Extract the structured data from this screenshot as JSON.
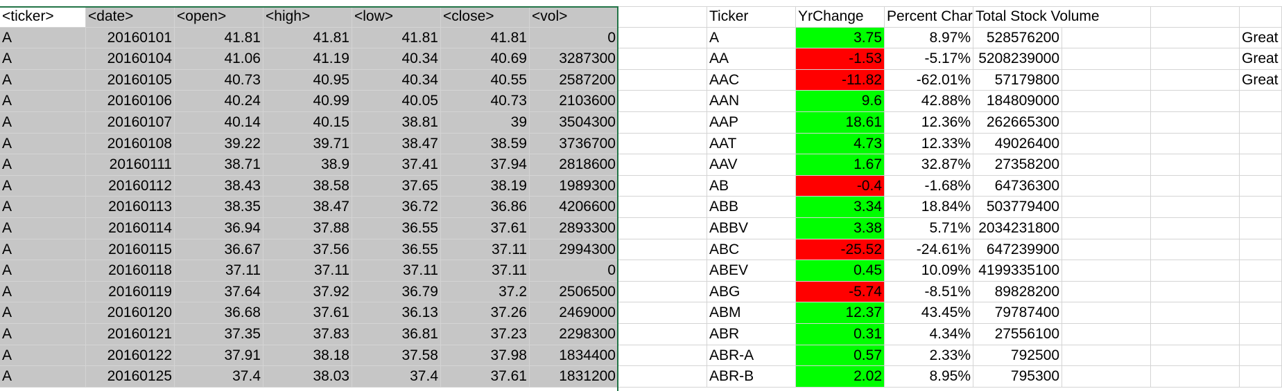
{
  "colors": {
    "selection_gray": "#c6c6c6",
    "positive_green": "#00ff00",
    "negative_red": "#ff0000",
    "selection_border": "#217346",
    "gridline": "#d4d4d4"
  },
  "raw_headers": [
    "<ticker>",
    "<date>",
    "<open>",
    "<high>",
    "<low>",
    "<close>",
    "<vol>"
  ],
  "raw_rows": [
    [
      "A",
      "20160101",
      "41.81",
      "41.81",
      "41.81",
      "41.81",
      "0"
    ],
    [
      "A",
      "20160104",
      "41.06",
      "41.19",
      "40.34",
      "40.69",
      "3287300"
    ],
    [
      "A",
      "20160105",
      "40.73",
      "40.95",
      "40.34",
      "40.55",
      "2587200"
    ],
    [
      "A",
      "20160106",
      "40.24",
      "40.99",
      "40.05",
      "40.73",
      "2103600"
    ],
    [
      "A",
      "20160107",
      "40.14",
      "40.15",
      "38.81",
      "39",
      "3504300"
    ],
    [
      "A",
      "20160108",
      "39.22",
      "39.71",
      "38.47",
      "38.59",
      "3736700"
    ],
    [
      "A",
      "20160111",
      "38.71",
      "38.9",
      "37.41",
      "37.94",
      "2818600"
    ],
    [
      "A",
      "20160112",
      "38.43",
      "38.58",
      "37.65",
      "38.19",
      "1989300"
    ],
    [
      "A",
      "20160113",
      "38.35",
      "38.47",
      "36.72",
      "36.86",
      "4206600"
    ],
    [
      "A",
      "20160114",
      "36.94",
      "37.88",
      "36.55",
      "37.61",
      "2893300"
    ],
    [
      "A",
      "20160115",
      "36.67",
      "37.56",
      "36.55",
      "37.11",
      "2994300"
    ],
    [
      "A",
      "20160118",
      "37.11",
      "37.11",
      "37.11",
      "37.11",
      "0"
    ],
    [
      "A",
      "20160119",
      "37.64",
      "37.92",
      "36.79",
      "37.2",
      "2506500"
    ],
    [
      "A",
      "20160120",
      "36.68",
      "37.61",
      "36.13",
      "37.26",
      "2469000"
    ],
    [
      "A",
      "20160121",
      "37.35",
      "37.83",
      "36.81",
      "37.23",
      "2298300"
    ],
    [
      "A",
      "20160122",
      "37.91",
      "38.18",
      "37.58",
      "37.98",
      "1834400"
    ],
    [
      "A",
      "20160125",
      "37.4",
      "38.03",
      "37.4",
      "37.61",
      "1831200"
    ]
  ],
  "summary_headers": [
    "Ticker",
    "YrChange",
    "Percent Char",
    "Total Stock Volume"
  ],
  "summary_rows": [
    {
      "ticker": "A",
      "yr_change": "3.75",
      "pct": "8.97%",
      "vol": "528576200",
      "positive": true
    },
    {
      "ticker": "AA",
      "yr_change": "-1.53",
      "pct": "-5.17%",
      "vol": "5208239000",
      "positive": false
    },
    {
      "ticker": "AAC",
      "yr_change": "-11.82",
      "pct": "-62.01%",
      "vol": "57179800",
      "positive": false
    },
    {
      "ticker": "AAN",
      "yr_change": "9.6",
      "pct": "42.88%",
      "vol": "184809000",
      "positive": true
    },
    {
      "ticker": "AAP",
      "yr_change": "18.61",
      "pct": "12.36%",
      "vol": "262665300",
      "positive": true
    },
    {
      "ticker": "AAT",
      "yr_change": "4.73",
      "pct": "12.33%",
      "vol": "49026400",
      "positive": true
    },
    {
      "ticker": "AAV",
      "yr_change": "1.67",
      "pct": "32.87%",
      "vol": "27358200",
      "positive": true
    },
    {
      "ticker": "AB",
      "yr_change": "-0.4",
      "pct": "-1.68%",
      "vol": "64736300",
      "positive": false
    },
    {
      "ticker": "ABB",
      "yr_change": "3.34",
      "pct": "18.84%",
      "vol": "503779400",
      "positive": true
    },
    {
      "ticker": "ABBV",
      "yr_change": "3.38",
      "pct": "5.71%",
      "vol": "2034231800",
      "positive": true
    },
    {
      "ticker": "ABC",
      "yr_change": "-25.52",
      "pct": "-24.61%",
      "vol": "647239900",
      "positive": false
    },
    {
      "ticker": "ABEV",
      "yr_change": "0.45",
      "pct": "10.09%",
      "vol": "4199335100",
      "positive": true
    },
    {
      "ticker": "ABG",
      "yr_change": "-5.74",
      "pct": "-8.51%",
      "vol": "89828200",
      "positive": false
    },
    {
      "ticker": "ABM",
      "yr_change": "12.37",
      "pct": "43.45%",
      "vol": "79787400",
      "positive": true
    },
    {
      "ticker": "ABR",
      "yr_change": "0.31",
      "pct": "4.34%",
      "vol": "27556100",
      "positive": true
    },
    {
      "ticker": "ABR-A",
      "yr_change": "0.57",
      "pct": "2.33%",
      "vol": "792500",
      "positive": true
    },
    {
      "ticker": "ABR-B",
      "yr_change": "2.02",
      "pct": "8.95%",
      "vol": "795300",
      "positive": true
    }
  ],
  "right_labels": [
    "Great",
    "Great",
    "Great"
  ]
}
